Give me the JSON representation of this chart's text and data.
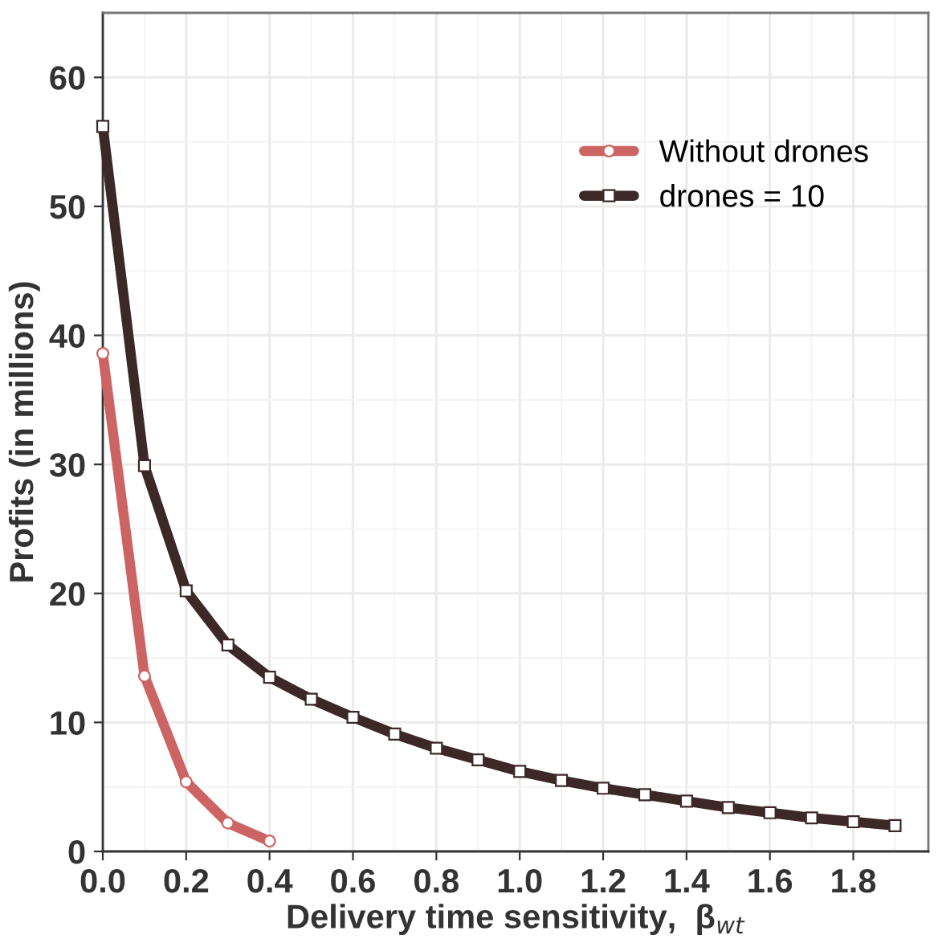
{
  "chart_data": {
    "type": "line",
    "xlabel": "Delivery time sensitivity,  β$_{wt}$",
    "ylabel": "Profits (in millions)",
    "series": [
      {
        "name": "Without drones",
        "color": "#cd6464",
        "marker": "circle",
        "x": [
          0,
          0.1,
          0.2,
          0.3,
          0.4
        ],
        "values": [
          38.6,
          13.6,
          5.4,
          2.2,
          0.8
        ]
      },
      {
        "name": "drones = 10",
        "color": "#3d2828",
        "marker": "square",
        "x": [
          0,
          0.1,
          0.2,
          0.3,
          0.4,
          0.5,
          0.6,
          0.7,
          0.8,
          0.9,
          1.0,
          1.1,
          1.2,
          1.3,
          1.4,
          1.5,
          1.6,
          1.7,
          1.8,
          1.9
        ],
        "values": [
          56.2,
          29.9,
          20.2,
          16.0,
          13.5,
          11.8,
          10.4,
          9.1,
          8.0,
          7.1,
          6.2,
          5.5,
          4.9,
          4.4,
          3.9,
          3.4,
          3.0,
          2.6,
          2.3,
          2.0
        ]
      }
    ],
    "xlim": [
      0,
      1.98
    ],
    "xticks": [
      {
        "value": 0,
        "label": "0.0"
      },
      0.2,
      0.4,
      0.6,
      0.8,
      {
        "value": 1,
        "label": "1.0"
      },
      1.2,
      1.4,
      1.6,
      1.8
    ],
    "ylim": [
      0,
      65
    ],
    "yticks": [
      0,
      10,
      20,
      30,
      40,
      50,
      60
    ],
    "grid": true,
    "legend": "top right",
    "line_style": "solid"
  }
}
